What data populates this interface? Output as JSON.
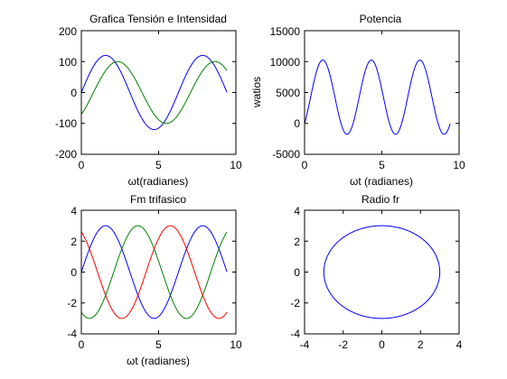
{
  "chart_data": [
    {
      "type": "line",
      "title": "Grafica Tensión e Intensidad",
      "xlabel": "ωt(radianes)",
      "ylabel": "",
      "xlim": [
        0,
        10
      ],
      "ylim": [
        -200,
        200
      ],
      "xticks": [
        "0",
        "5",
        "10"
      ],
      "yticks": [
        "-200",
        "-100",
        "0",
        "100",
        "200"
      ],
      "grid": false,
      "series": [
        {
          "color": "#0000ff",
          "x_range": [
            0,
            9.42
          ],
          "amplitude": 120,
          "phase_rad": 0
        },
        {
          "color": "#008000",
          "x_range": [
            0,
            9.42
          ],
          "amplitude": 100,
          "phase_rad": -0.785
        }
      ]
    },
    {
      "type": "line",
      "title": "Potencia",
      "xlabel": "ωt (radianes)",
      "ylabel": "watios",
      "xlim": [
        0,
        10
      ],
      "ylim": [
        -5000,
        15000
      ],
      "xticks": [
        "0",
        "5",
        "10"
      ],
      "yticks": [
        "-5000",
        "0",
        "5000",
        "10000",
        "15000"
      ],
      "grid": false,
      "series": [
        {
          "color": "#0000ff",
          "x_range": [
            0,
            9.42
          ],
          "offset": 4243,
          "amplitude": 6000,
          "frequency": 2,
          "phase_rad": -0.785
        }
      ]
    },
    {
      "type": "line",
      "title": "Fm trifasico",
      "xlabel": "ωt (radianes)",
      "ylabel": "",
      "xlim": [
        0,
        10
      ],
      "ylim": [
        -4,
        4
      ],
      "xticks": [
        "0",
        "5",
        "10"
      ],
      "yticks": [
        "-4",
        "-2",
        "0",
        "2",
        "4"
      ],
      "grid": false,
      "series": [
        {
          "color": "#0000ff",
          "x_range": [
            0,
            9.42
          ],
          "amplitude": 3,
          "phase_rad": 0
        },
        {
          "color": "#008000",
          "x_range": [
            0,
            9.42
          ],
          "amplitude": 3,
          "phase_rad": -2.094
        },
        {
          "color": "#ff0000",
          "x_range": [
            0,
            9.42
          ],
          "amplitude": 3,
          "phase_rad": 2.094
        }
      ]
    },
    {
      "type": "line",
      "title": "Radio fr",
      "xlabel": "",
      "ylabel": "",
      "xlim": [
        -4,
        4
      ],
      "ylim": [
        -4,
        4
      ],
      "xticks": [
        "-4",
        "-2",
        "0",
        "2",
        "4"
      ],
      "yticks": [
        "-4",
        "-2",
        "0",
        "2",
        "4"
      ],
      "grid": false,
      "series": [
        {
          "color": "#0000ff",
          "shape": "circle",
          "center": [
            0,
            0
          ],
          "radius": 3
        }
      ]
    }
  ]
}
